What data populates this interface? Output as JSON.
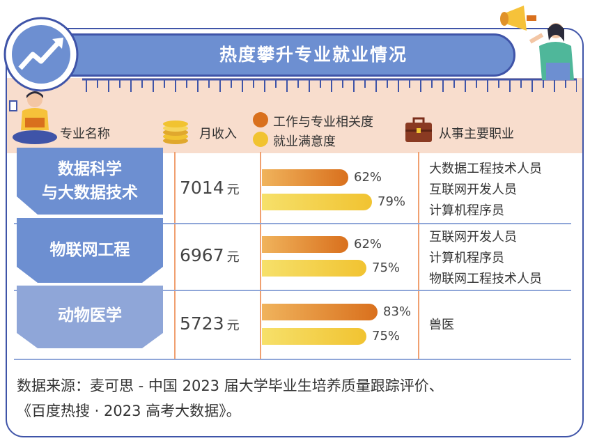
{
  "title": "热度攀升专业就业情况",
  "headers": {
    "major": "专业名称",
    "income": "月收入",
    "relevance_legend": "工作与专业相关度",
    "satisfaction_legend": "就业满意度",
    "jobs": "从事主要职业"
  },
  "rows": [
    {
      "name_line1": "数据科学",
      "name_line2": "与大数据技术",
      "income": "7014",
      "unit": "元",
      "relevance": "62%",
      "satisfaction": "79%",
      "relevance_value": 62,
      "satisfaction_value": 79,
      "jobs": [
        "大数据工程技术人员",
        "互联网开发人员",
        "计算机程序员"
      ]
    },
    {
      "name_line1": "物联网工程",
      "name_line2": "",
      "income": "6967",
      "unit": "元",
      "relevance": "62%",
      "satisfaction": "75%",
      "relevance_value": 62,
      "satisfaction_value": 75,
      "jobs": [
        "互联网开发人员",
        "计算机程序员",
        "物联网工程技术人员"
      ]
    },
    {
      "name_line1": "动物医学",
      "name_line2": "",
      "income": "5723",
      "unit": "元",
      "relevance": "83%",
      "satisfaction": "75%",
      "relevance_value": 83,
      "satisfaction_value": 75,
      "jobs": [
        "兽医"
      ]
    }
  ],
  "footer": {
    "line1": "数据来源：麦可思 - 中国 2023 届大学毕业生培养质量跟踪评价、",
    "line2": "《百度热搜 · 2023 高考大数据》。"
  },
  "colors": {
    "navy": "#3f54a8",
    "blue": "#6d8fd1",
    "peach": "#f8ddcd",
    "orange": "#d9701d",
    "yellow": "#f1c331"
  }
}
